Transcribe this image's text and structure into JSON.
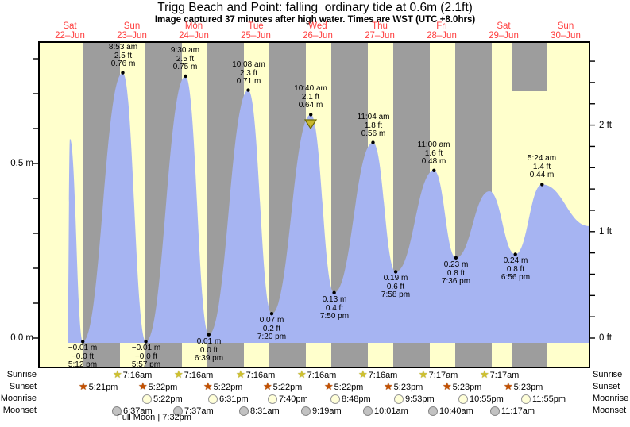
{
  "title": "Trigg Beach and Point: falling  ordinary tide at 0.6m (2.1ft)",
  "subtitle": "Image captured 37 minutes after high water. Times are WST (UTC +8.0hrs)",
  "days": [
    {
      "name": "Sat",
      "date": "22–Jun"
    },
    {
      "name": "Sun",
      "date": "23–Jun"
    },
    {
      "name": "Mon",
      "date": "24–Jun"
    },
    {
      "name": "Tue",
      "date": "25–Jun"
    },
    {
      "name": "Wed",
      "date": "26–Jun"
    },
    {
      "name": "Thu",
      "date": "27–Jun"
    },
    {
      "name": "Fri",
      "date": "28–Jun"
    },
    {
      "name": "Sat",
      "date": "29–Jun"
    },
    {
      "name": "Sun",
      "date": "30–Jun"
    }
  ],
  "y_axis_left": {
    "unit": "m",
    "labels": [
      "0.5 m",
      "0.0 m"
    ]
  },
  "y_axis_right": {
    "unit": "ft",
    "labels": [
      "2 ft",
      "1 ft",
      "0 ft"
    ]
  },
  "chart_data": {
    "type": "area",
    "title": "Trigg Beach and Point: falling ordinary tide at 0.6m (2.1ft)",
    "x_range": [
      "22-Jun",
      "30-Jun"
    ],
    "y_left": {
      "unit": "m",
      "labeled_ticks": [
        0.0,
        0.5
      ],
      "minor_step": 0.1
    },
    "y_right": {
      "unit": "ft",
      "labeled_ticks": [
        0,
        1,
        2
      ],
      "minor_step": 0.2
    },
    "extremes": [
      {
        "type": "low",
        "day": 0,
        "time": "5:12 pm",
        "height_m": -0.01,
        "label_m": "−0.01 m",
        "label_ft": "−0.0 ft"
      },
      {
        "type": "high",
        "day": 1,
        "time": "8:53 am",
        "height_m": 0.76,
        "label_m": "0.76 m",
        "label_ft": "2.5 ft"
      },
      {
        "type": "low",
        "day": 1,
        "time": "5:57 pm",
        "height_m": -0.01,
        "label_m": "−0.01 m",
        "label_ft": "−0.0 ft"
      },
      {
        "type": "high",
        "day": 2,
        "time": "9:30 am",
        "height_m": 0.75,
        "label_m": "0.75 m",
        "label_ft": "2.5 ft"
      },
      {
        "type": "low",
        "day": 2,
        "time": "6:39 pm",
        "height_m": 0.01,
        "label_m": "0.01 m",
        "label_ft": "0.0 ft"
      },
      {
        "type": "high",
        "day": 3,
        "time": "10:08 am",
        "height_m": 0.71,
        "label_m": "0.71 m",
        "label_ft": "2.3 ft"
      },
      {
        "type": "low",
        "day": 3,
        "time": "7:20 pm",
        "height_m": 0.07,
        "label_m": "0.07 m",
        "label_ft": "0.2 ft"
      },
      {
        "type": "high",
        "day": 4,
        "time": "10:40 am",
        "height_m": 0.64,
        "label_m": "0.64 m",
        "label_ft": "2.1 ft"
      },
      {
        "type": "low",
        "day": 4,
        "time": "7:50 pm",
        "height_m": 0.13,
        "label_m": "0.13 m",
        "label_ft": "0.4 ft"
      },
      {
        "type": "high",
        "day": 5,
        "time": "11:04 am",
        "height_m": 0.56,
        "label_m": "0.56 m",
        "label_ft": "1.8 ft"
      },
      {
        "type": "low",
        "day": 5,
        "time": "7:58 pm",
        "height_m": 0.19,
        "label_m": "0.19 m",
        "label_ft": "0.6 ft"
      },
      {
        "type": "high",
        "day": 6,
        "time": "11:00 am",
        "height_m": 0.48,
        "label_m": "0.48 m",
        "label_ft": "1.6 ft"
      },
      {
        "type": "low",
        "day": 6,
        "time": "7:36 pm",
        "height_m": 0.23,
        "label_m": "0.23 m",
        "label_ft": "0.8 ft"
      },
      {
        "type": "low",
        "day": 7,
        "time": "6:56 pm",
        "height_m": 0.24,
        "label_m": "0.24 m",
        "label_ft": "0.8 ft"
      },
      {
        "type": "high",
        "day": 8,
        "time": "5:24 am",
        "height_m": 0.44,
        "label_m": "0.44 m",
        "label_ft": "1.4 ft"
      }
    ],
    "unlabeled_features": [
      {
        "type": "high",
        "day": 0,
        "approx_height_m": 0.57
      },
      {
        "type": "high",
        "day": 7,
        "approx_height_m": 0.42
      }
    ],
    "current_level_marker": {
      "shape": "down-triangle",
      "height_m": 0.6,
      "near": "Wed 26-Jun high tide"
    }
  },
  "astro": {
    "row_labels": [
      "Sunrise",
      "Sunset",
      "Moonrise",
      "Moonset"
    ],
    "sunrise": [
      "7:16am",
      "7:16am",
      "7:16am",
      "7:16am",
      "7:16am",
      "7:17am",
      "7:17am"
    ],
    "sunset": [
      "5:21pm",
      "5:22pm",
      "5:22pm",
      "5:22pm",
      "5:22pm",
      "5:23pm",
      "5:23pm",
      "5:23pm"
    ],
    "moonrise": [
      "5:22pm",
      "6:31pm",
      "7:40pm",
      "8:48pm",
      "9:53pm",
      "10:55pm",
      "11:55pm"
    ],
    "moonset": [
      "6:37am",
      "7:37am",
      "8:31am",
      "9:19am",
      "10:01am",
      "10:40am",
      "11:17am"
    ],
    "full_moon": "Full Moon | 7:32pm"
  },
  "colors": {
    "plot_day_bg": "#ffffcc",
    "night_band": "#9d9d9d",
    "tide_fill": "#a6b4f2",
    "day_label": "#ff4040",
    "axis": "#000000",
    "sunrise_icon": "#cfc12e",
    "sunset_icon": "#c35000",
    "marker_fill": "#c9b82e",
    "marker_stroke": "#6f6a00"
  }
}
